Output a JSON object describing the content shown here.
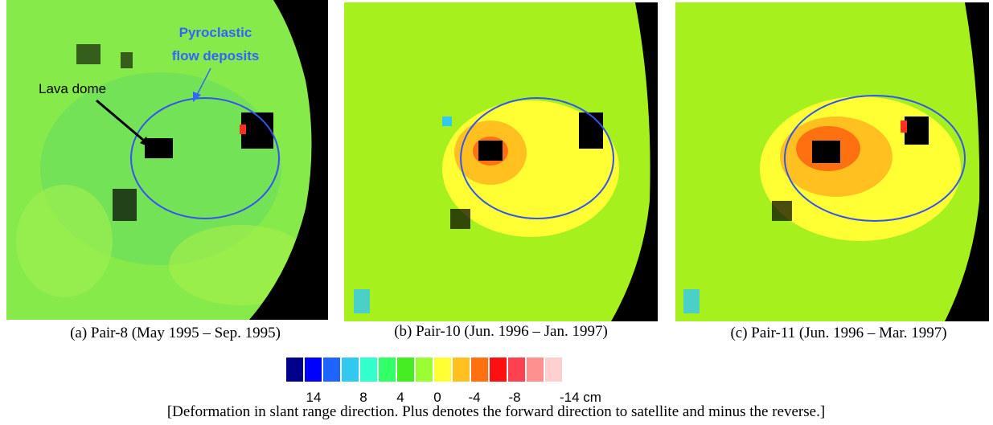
{
  "panels": [
    {
      "caption": "(a) Pair-8 (May 1995 – Sep. 1995)",
      "annotations": [
        "Pyroclastic",
        "flow deposits",
        "Lava dome"
      ]
    },
    {
      "caption": "(b) Pair-10 (Jun. 1996 – Jan. 1997)"
    },
    {
      "caption": "(c) Pair-11 (Jun. 1996 – Mar. 1997)"
    }
  ],
  "colorbar": {
    "colors": [
      "#00008b",
      "#0000ff",
      "#1e64ff",
      "#33c8f0",
      "#33ffcc",
      "#33ff66",
      "#44ee22",
      "#99ff33",
      "#ffff33",
      "#ffc020",
      "#ff7010",
      "#ff1010",
      "#ff4050",
      "#ff9090",
      "#ffd0d0"
    ],
    "labels": [
      "14",
      "8",
      "4",
      "0",
      "-4",
      "-8",
      "-14 cm"
    ]
  },
  "footnote": "[Deformation in slant range direction. Plus denotes the forward direction to satellite and minus the reverse.]"
}
